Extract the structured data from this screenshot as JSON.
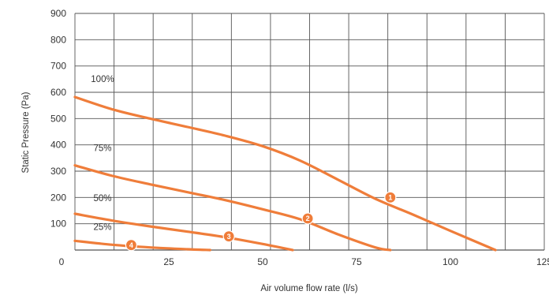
{
  "chart_data": {
    "type": "line",
    "title": "",
    "xlabel": "Air volume flow rate (l/s)",
    "ylabel": "Static Pressure (Pa)",
    "xlim": [
      0,
      125
    ],
    "ylim": [
      0,
      900
    ],
    "x_ticks": [
      0,
      25,
      50,
      75,
      100,
      125
    ],
    "y_ticks": [
      100,
      200,
      300,
      400,
      500,
      600,
      700,
      800,
      900
    ],
    "grid": true,
    "legend": "none",
    "colors": {
      "curve": "#ef7d3a",
      "grid": "#555555",
      "text": "#333333"
    },
    "series": [
      {
        "name": "100%",
        "x": [
          0,
          10,
          20,
          30,
          40,
          50,
          60,
          70,
          80,
          90,
          100,
          112
        ],
        "y": [
          582,
          535,
          500,
          468,
          435,
          395,
          340,
          268,
          195,
          135,
          73,
          0
        ]
      },
      {
        "name": "75%",
        "x": [
          0,
          10,
          20,
          30,
          40,
          50,
          60,
          70,
          80,
          84
        ],
        "y": [
          322,
          282,
          250,
          220,
          190,
          155,
          117,
          60,
          10,
          0
        ]
      },
      {
        "name": "50%",
        "x": [
          0,
          10,
          20,
          30,
          40,
          50,
          58
        ],
        "y": [
          138,
          112,
          90,
          70,
          49,
          23,
          0
        ]
      },
      {
        "name": "25%",
        "x": [
          0,
          10,
          20,
          30,
          36
        ],
        "y": [
          35,
          20,
          10,
          3,
          0
        ]
      }
    ],
    "markers": [
      {
        "label": "1",
        "x": 84,
        "y": 200
      },
      {
        "label": "2",
        "x": 62,
        "y": 120
      },
      {
        "label": "3",
        "x": 41,
        "y": 52
      },
      {
        "label": "4",
        "x": 15,
        "y": 19
      }
    ]
  }
}
